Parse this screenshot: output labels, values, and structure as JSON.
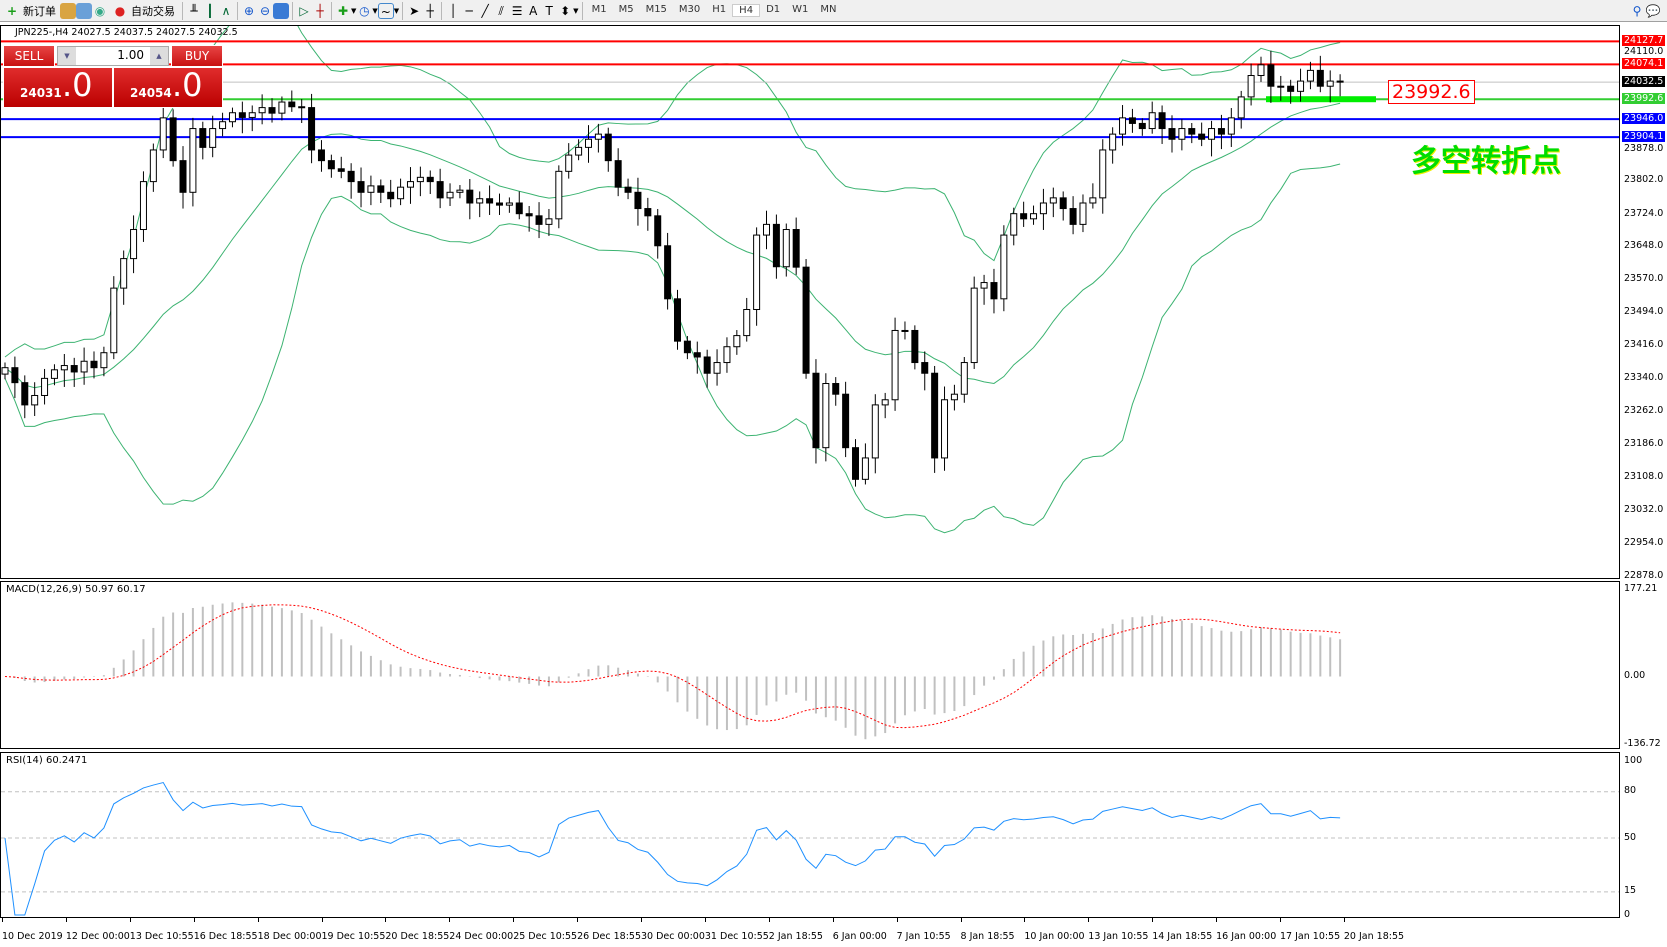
{
  "toolbar": {
    "new_order": "新订单",
    "auto_trading": "自动交易",
    "timeframes": [
      "M1",
      "M5",
      "M15",
      "M30",
      "H1",
      "H4",
      "D1",
      "W1",
      "MN"
    ],
    "active_timeframe": "H4"
  },
  "chart": {
    "header": "JPN225-,H4  24027.5 24037.5 24027.5 24032.5",
    "symbol": "JPN225-",
    "timeframe": "H4",
    "ohlc": {
      "open": 24027.5,
      "high": 24037.5,
      "low": 24027.5,
      "close": 24032.5
    },
    "trade_panel": {
      "sell_label": "SELL",
      "buy_label": "BUY",
      "lot": "1.00",
      "sell_big": "24031",
      "sell_small": ".0",
      "buy_big": "24054",
      "buy_small": ".0"
    },
    "price_ticks": [
      "24110.0",
      "23878.0",
      "23802.0",
      "23724.0",
      "23648.0",
      "23570.0",
      "23494.0",
      "23416.0",
      "23340.0",
      "23262.0",
      "23186.0",
      "23108.0",
      "23032.0",
      "22954.0",
      "22878.0"
    ],
    "price_range": [
      22878,
      24110
    ],
    "hlines": [
      {
        "price": 24127.7,
        "label": "24127.7",
        "color": "#ff0000"
      },
      {
        "price": 24074.1,
        "label": "24074.1",
        "color": "#ff0000"
      },
      {
        "price": 24032.5,
        "label": "24032.5",
        "color": "#c0c0c0",
        "label_bg": "#000000"
      },
      {
        "price": 23992.6,
        "label": "23992.6",
        "color": "#32cd32"
      },
      {
        "price": 23946.0,
        "label": "23946.0",
        "color": "#0000ff"
      },
      {
        "price": 23904.1,
        "label": "23904.1",
        "color": "#0000ff"
      }
    ],
    "price_box_label": "23992.6",
    "annotation": "多空转折点",
    "colors": {
      "bands": "#3cb371",
      "annotation": "#00dd00",
      "box": "#ff0000"
    },
    "closes": [
      23365,
      23330,
      23278,
      23300,
      23340,
      23360,
      23370,
      23355,
      23380,
      23365,
      23400,
      23551,
      23620,
      23688,
      23800,
      23874,
      23949,
      23849,
      23775,
      23924,
      23880,
      23924,
      23940,
      23961,
      23950,
      23961,
      23973,
      23960,
      23986,
      23975,
      23973,
      23874,
      23849,
      23830,
      23824,
      23800,
      23775,
      23790,
      23775,
      23760,
      23787,
      23800,
      23810,
      23800,
      23762,
      23775,
      23780,
      23750,
      23760,
      23750,
      23745,
      23750,
      23725,
      23720,
      23700,
      23713,
      23824,
      23862,
      23880,
      23899,
      23911,
      23849,
      23787,
      23775,
      23737,
      23720,
      23650,
      23526,
      23427,
      23400,
      23390,
      23352,
      23377,
      23414,
      23440,
      23501,
      23675,
      23700,
      23601,
      23688,
      23600,
      23352,
      23178,
      23328,
      23303,
      23178,
      23104,
      23154,
      23278,
      23290,
      23452,
      23452,
      23377,
      23352,
      23154,
      23290,
      23303,
      23377,
      23551,
      23564,
      23526,
      23675,
      23725,
      23713,
      23725,
      23750,
      23762,
      23737,
      23700,
      23750,
      23762,
      23874,
      23911,
      23949,
      23936,
      23924,
      23961,
      23924,
      23899,
      23924,
      23911,
      23899,
      23924,
      23911,
      23949,
      23998,
      24048,
      24073,
      24023,
      24023,
      24011,
      24035,
      24060,
      24023,
      24035,
      24032.5
    ]
  },
  "macd": {
    "label": "MACD(12,26,9) 50.97 60.17",
    "ticks": [
      "177.21",
      "0.00",
      "-136.72"
    ],
    "range": [
      -136.72,
      177.21
    ]
  },
  "rsi": {
    "label": "RSI(14) 60.2471",
    "ticks": [
      "100",
      "80",
      "50",
      "15",
      "0"
    ],
    "levels": [
      80,
      50,
      15
    ]
  },
  "dates": [
    "10 Dec 2019",
    "12 Dec 00:00",
    "13 Dec 10:55",
    "16 Dec 18:55",
    "18 Dec 00:00",
    "19 Dec 10:55",
    "20 Dec 18:55",
    "24 Dec 00:00",
    "25 Dec 10:55",
    "26 Dec 18:55",
    "30 Dec 00:00",
    "31 Dec 10:55",
    "2 Jan 18:55",
    "6 Jan 00:00",
    "7 Jan 10:55",
    "8 Jan 18:55",
    "10 Jan 00:00",
    "13 Jan 10:55",
    "14 Jan 18:55",
    "16 Jan 00:00",
    "17 Jan 10:55",
    "20 Jan 18:55"
  ]
}
